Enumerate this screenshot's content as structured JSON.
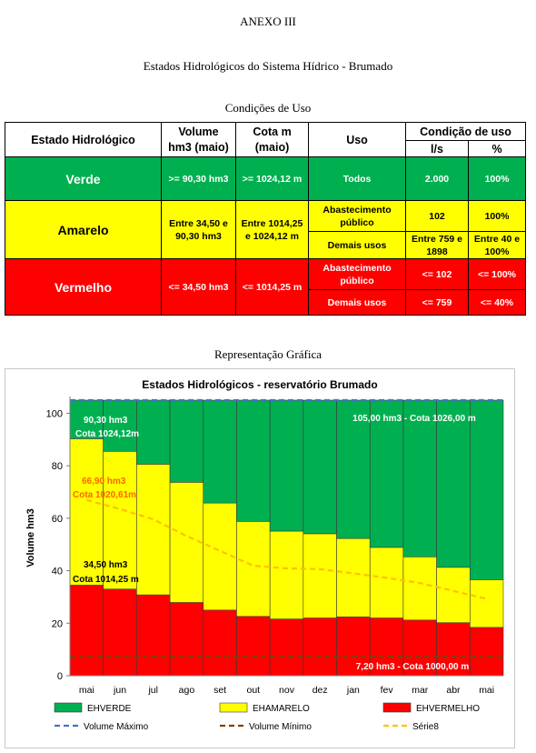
{
  "heading": "ANEXO III",
  "subtitle": "Estados Hidrológicos do Sistema Hídrico - Brumado",
  "table_title": "Condições de Uso",
  "table": {
    "headers": {
      "estado": "Estado Hidrológico",
      "volume_1": "Volume",
      "volume_2": "hm3 (maio)",
      "cota_1": "Cota m",
      "cota_2": "(maio)",
      "uso": "Uso",
      "condicao": "Condição de uso",
      "ls": "l/s",
      "pct": "%"
    },
    "rows": {
      "verde": {
        "estado": "Verde",
        "volume": ">= 90,30 hm3",
        "cota": ">= 1024,12 m",
        "uso": "Todos",
        "ls": "2.000",
        "pct": "100%",
        "color": "#00b050"
      },
      "amarelo": {
        "estado": "Amarelo",
        "volume": "Entre 34,50 e 90,30 hm3",
        "cota": "Entre 1014,25 e 1024,12 m",
        "uso_1": "Abastecimento público",
        "ls_1": "102",
        "pct_1": "100%",
        "uso_2": "Demais usos",
        "ls_2": "Entre 759 e 1898",
        "pct_2": "Entre 40 e 100%",
        "color": "#ffff00"
      },
      "vermelho": {
        "estado": "Vermelho",
        "volume": "<= 34,50 hm3",
        "cota": "<= 1014,25 m",
        "uso_1": "Abastecimento público",
        "ls_1": "<= 102",
        "pct_1": "<= 100%",
        "uso_2": "Demais usos",
        "ls_2": "<= 759",
        "pct_2": "<= 40%",
        "color": "#ff0000"
      }
    }
  },
  "chart_section_title": "Representação Gráfica",
  "chart_data": {
    "type": "bar",
    "stacked": true,
    "title": "Estados Hidrológicos - reservatório Brumado",
    "ylabel": "Volume hm3",
    "xlabel": "",
    "ylim": [
      0,
      105
    ],
    "yticks": [
      0,
      20,
      40,
      60,
      80,
      100
    ],
    "grid": false,
    "legend_position": "bottom",
    "categories": [
      "mai",
      "jun",
      "jul",
      "ago",
      "set",
      "out",
      "nov",
      "dez",
      "jan",
      "fev",
      "mar",
      "abr",
      "mai"
    ],
    "series": [
      {
        "name": "EHVERMELHO",
        "color": "#ff0000",
        "values": [
          34.5,
          33.0,
          30.8,
          27.9,
          25.0,
          22.6,
          21.6,
          22.0,
          22.4,
          22.0,
          21.2,
          20.2,
          18.4
        ]
      },
      {
        "name": "EHAMARELO",
        "color": "#ffff00",
        "values": [
          55.8,
          52.5,
          49.8,
          45.8,
          40.8,
          36.2,
          33.5,
          32.1,
          29.9,
          26.9,
          24.1,
          21.1,
          18.2
        ]
      },
      {
        "name": "EHVERDE",
        "color": "#00b050",
        "values": [
          14.7,
          19.5,
          24.4,
          31.3,
          39.2,
          46.2,
          49.9,
          50.9,
          52.7,
          56.1,
          59.7,
          63.7,
          68.4
        ]
      }
    ],
    "lines": [
      {
        "name": "Volume Máximo",
        "color": "#4472c4",
        "style": "dash",
        "values": [
          105,
          105,
          105,
          105,
          105,
          105,
          105,
          105,
          105,
          105,
          105,
          105,
          105
        ]
      },
      {
        "name": "Volume Mínimo",
        "color": "#843c0c",
        "style": "dash",
        "values": [
          7.2,
          7.2,
          7.2,
          7.2,
          7.2,
          7.2,
          7.2,
          7.2,
          7.2,
          7.2,
          7.2,
          7.2,
          7.2
        ]
      },
      {
        "name": "Série8",
        "color": "#ffc000",
        "style": "dash",
        "values": [
          66.9,
          63.5,
          59.6,
          53.2,
          47.6,
          41.9,
          40.9,
          40.6,
          39.0,
          37.3,
          35.3,
          32.3,
          29.3
        ]
      }
    ],
    "annotations": [
      {
        "text": "90,30 hm3",
        "color": "#ffffff"
      },
      {
        "text": "Cota 1024,12m",
        "color": "#ffffff"
      },
      {
        "text": "105,00 hm3 - Cota 1026,00 m",
        "color": "#ffffff"
      },
      {
        "text": "66,90 hm3",
        "color": "#ff6600"
      },
      {
        "text": "Cota 1020,61m",
        "color": "#ff6600"
      },
      {
        "text": "34,50 hm3",
        "color": "#000000"
      },
      {
        "text": "Cota 1014,25 m",
        "color": "#000000"
      },
      {
        "text": "7,20 hm3 - Cota 1000,00 m",
        "color": "#ffffff"
      }
    ]
  }
}
